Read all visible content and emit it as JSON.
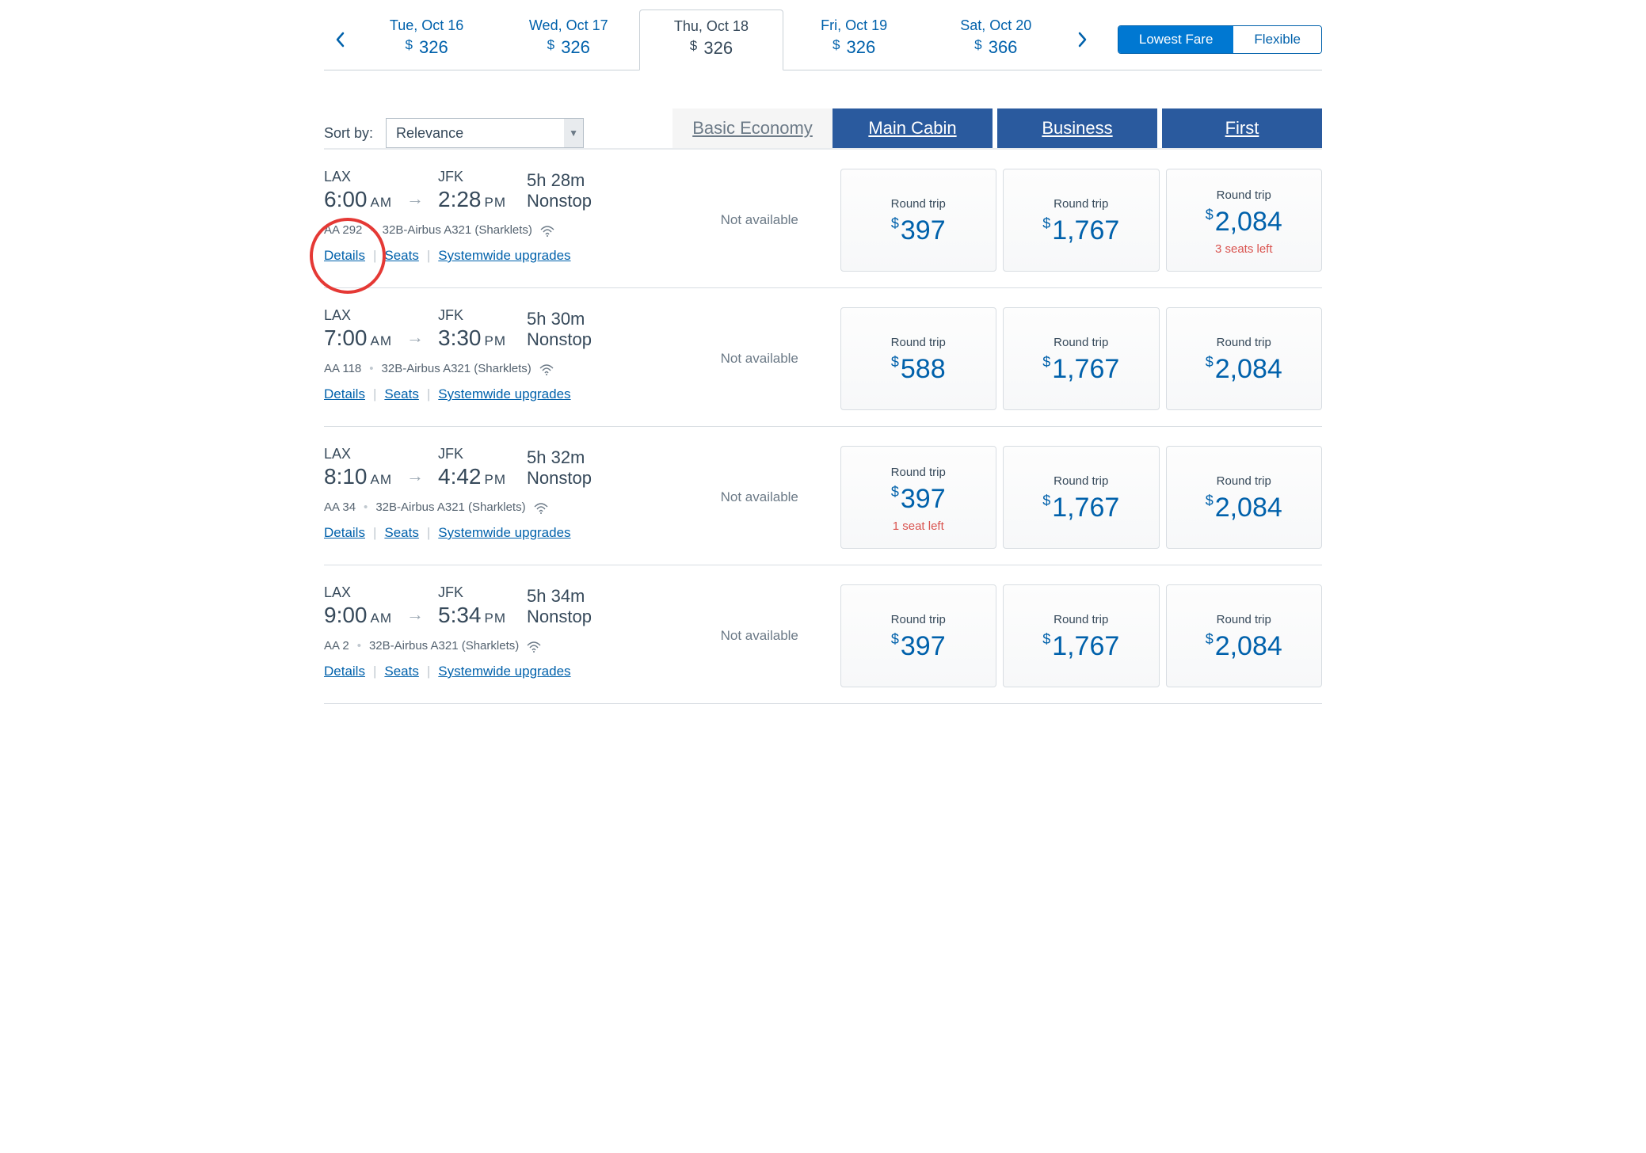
{
  "colors": {
    "brand_blue": "#0061ab",
    "header_blue": "#2a5a9e",
    "text_dark": "#36495a",
    "light_gray": "#f5f5f5",
    "border_gray": "#d8dde2",
    "alert_red": "#d9534f",
    "toggle_active": "#0078d2"
  },
  "date_tabs": {
    "items": [
      {
        "label": "Tue, Oct 16",
        "price": "326",
        "selected": false
      },
      {
        "label": "Wed, Oct 17",
        "price": "326",
        "selected": false
      },
      {
        "label": "Thu, Oct 18",
        "price": "326",
        "selected": true
      },
      {
        "label": "Fri, Oct 19",
        "price": "326",
        "selected": false
      },
      {
        "label": "Sat, Oct 20",
        "price": "366",
        "selected": false
      }
    ]
  },
  "fare_toggle": {
    "lowest": "Lowest Fare",
    "flexible": "Flexible"
  },
  "sort": {
    "label": "Sort by:",
    "selected": "Relevance"
  },
  "class_headers": {
    "basic": "Basic Economy",
    "main": "Main Cabin",
    "business": "Business",
    "first": "First"
  },
  "common": {
    "round_trip": "Round trip",
    "not_available": "Not available",
    "details": "Details",
    "seats": "Seats",
    "sys_upgrades": "Systemwide upgrades",
    "currency": "$"
  },
  "flights": [
    {
      "dep_code": "LAX",
      "dep_time": "6:00",
      "dep_ampm": "AM",
      "arr_code": "JFK",
      "arr_time": "2:28",
      "arr_ampm": "PM",
      "duration": "5h  28m",
      "stops": "Nonstop",
      "flight_no": "AA 292",
      "aircraft": "32B-Airbus A321 (Sharklets)",
      "basic": null,
      "main": {
        "price": "397",
        "seats_left": null
      },
      "biz": {
        "price": "1,767",
        "seats_left": null
      },
      "first": {
        "price": "2,084",
        "seats_left": "3 seats left"
      },
      "annotate_details_circle": true
    },
    {
      "dep_code": "LAX",
      "dep_time": "7:00",
      "dep_ampm": "AM",
      "arr_code": "JFK",
      "arr_time": "3:30",
      "arr_ampm": "PM",
      "duration": "5h  30m",
      "stops": "Nonstop",
      "flight_no": "AA 118",
      "aircraft": "32B-Airbus A321 (Sharklets)",
      "basic": null,
      "main": {
        "price": "588",
        "seats_left": null
      },
      "biz": {
        "price": "1,767",
        "seats_left": null
      },
      "first": {
        "price": "2,084",
        "seats_left": null
      }
    },
    {
      "dep_code": "LAX",
      "dep_time": "8:10",
      "dep_ampm": "AM",
      "arr_code": "JFK",
      "arr_time": "4:42",
      "arr_ampm": "PM",
      "duration": "5h  32m",
      "stops": "Nonstop",
      "flight_no": "AA 34",
      "aircraft": "32B-Airbus A321 (Sharklets)",
      "basic": null,
      "main": {
        "price": "397",
        "seats_left": "1 seat left"
      },
      "biz": {
        "price": "1,767",
        "seats_left": null
      },
      "first": {
        "price": "2,084",
        "seats_left": null
      }
    },
    {
      "dep_code": "LAX",
      "dep_time": "9:00",
      "dep_ampm": "AM",
      "arr_code": "JFK",
      "arr_time": "5:34",
      "arr_ampm": "PM",
      "duration": "5h  34m",
      "stops": "Nonstop",
      "flight_no": "AA 2",
      "aircraft": "32B-Airbus A321 (Sharklets)",
      "basic": null,
      "main": {
        "price": "397",
        "seats_left": null
      },
      "biz": {
        "price": "1,767",
        "seats_left": null
      },
      "first": {
        "price": "2,084",
        "seats_left": null
      }
    }
  ]
}
